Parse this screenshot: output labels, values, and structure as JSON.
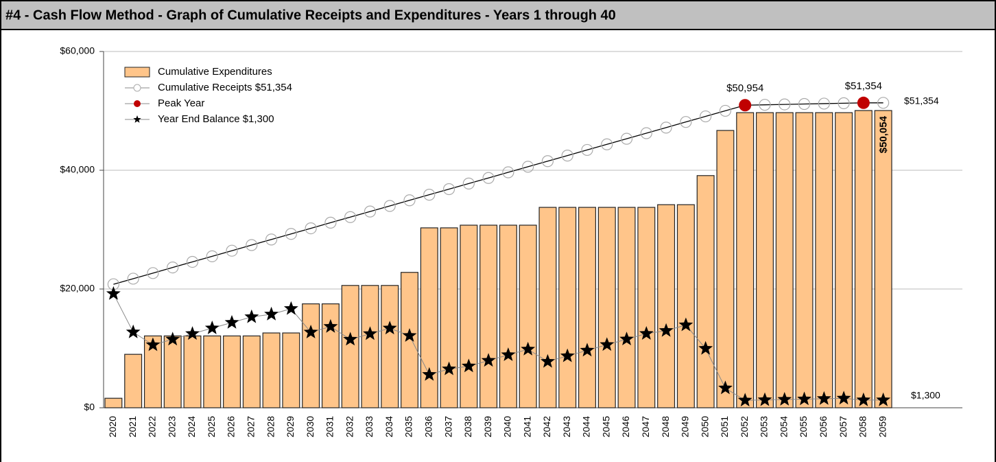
{
  "header": {
    "title": "#4 - Cash Flow Method - Graph of Cumulative Receipts and Expenditures - Years 1 through  40"
  },
  "chart_data": {
    "type": "bar",
    "categories": [
      "2020",
      "2021",
      "2022",
      "2023",
      "2024",
      "2025",
      "2026",
      "2027",
      "2028",
      "2029",
      "2030",
      "2031",
      "2032",
      "2033",
      "2034",
      "2035",
      "2036",
      "2037",
      "2038",
      "2039",
      "2040",
      "2041",
      "2042",
      "2043",
      "2044",
      "2045",
      "2046",
      "2047",
      "2048",
      "2049",
      "2050",
      "2051",
      "2052",
      "2053",
      "2054",
      "2055",
      "2056",
      "2057",
      "2058",
      "2059"
    ],
    "series": [
      {
        "name": "Cumulative Expenditures",
        "kind": "bar",
        "color": "#ffc58a",
        "values": [
          1600,
          9000,
          12100,
          12100,
          12100,
          12100,
          12100,
          12100,
          12600,
          12600,
          17500,
          17500,
          20600,
          20600,
          20600,
          22800,
          30300,
          30300,
          30750,
          30750,
          30750,
          30750,
          33750,
          33750,
          33750,
          33750,
          33750,
          33750,
          34200,
          34200,
          39100,
          46700,
          49700,
          49700,
          49700,
          49700,
          49700,
          49700,
          50054,
          50054
        ],
        "value_labels": [
          null,
          null,
          null,
          null,
          null,
          null,
          null,
          null,
          null,
          null,
          null,
          null,
          null,
          null,
          null,
          null,
          null,
          null,
          null,
          null,
          null,
          null,
          null,
          null,
          null,
          null,
          null,
          null,
          null,
          null,
          null,
          null,
          null,
          null,
          null,
          null,
          null,
          null,
          null,
          "$50,054"
        ]
      },
      {
        "name": "Cumulative Receipts $51,354",
        "kind": "circle-line",
        "color": "#aaaaaa",
        "values": [
          20800,
          21740,
          22680,
          23630,
          24570,
          25510,
          26450,
          27400,
          28340,
          29280,
          30220,
          31170,
          32110,
          33050,
          33990,
          34940,
          35880,
          36820,
          37760,
          38700,
          39650,
          40590,
          41530,
          42470,
          43420,
          44360,
          45300,
          46240,
          47180,
          48130,
          49070,
          50010,
          50954,
          51021,
          51088,
          51154,
          51221,
          51288,
          51354,
          51354
        ],
        "end_label": "$51,354"
      },
      {
        "name": "Peak Year",
        "kind": "peak",
        "color": "#c00000",
        "points": [
          {
            "category": "2052",
            "value": 50954,
            "label": "$50,954"
          },
          {
            "category": "2058",
            "value": 51354,
            "label": "$51,354"
          }
        ]
      },
      {
        "name": "Year End Balance $1,300",
        "kind": "star-line",
        "color": "#000000",
        "values": [
          19200,
          12740,
          10580,
          11530,
          12470,
          13410,
          14350,
          15300,
          15740,
          16680,
          12720,
          13670,
          11510,
          12450,
          13390,
          12140,
          5580,
          6520,
          7010,
          7950,
          8900,
          9840,
          7780,
          8720,
          9670,
          10610,
          11550,
          12490,
          12980,
          13930,
          9970,
          3310,
          1254,
          1321,
          1388,
          1454,
          1521,
          1588,
          1300,
          1300
        ],
        "end_label": "$1,300"
      }
    ],
    "ylim": [
      0,
      60000
    ],
    "yticks": [
      {
        "value": 0,
        "label": "$0"
      },
      {
        "value": 20000,
        "label": "$20,000"
      },
      {
        "value": 40000,
        "label": "$40,000"
      },
      {
        "value": 60000,
        "label": "$60,000"
      }
    ],
    "grid": true
  }
}
